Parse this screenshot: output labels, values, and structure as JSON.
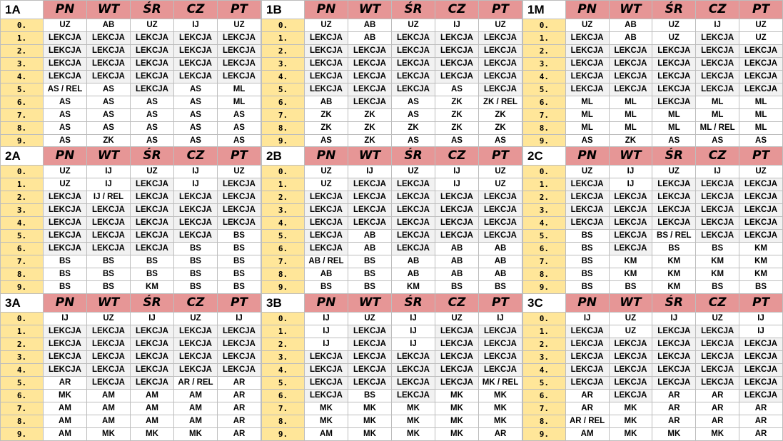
{
  "days": [
    "PN",
    "WT",
    "ŚR",
    "CZ",
    "PT"
  ],
  "lesson_numbers": [
    "0.",
    "1.",
    "2.",
    "3.",
    "4.",
    "5.",
    "6.",
    "7.",
    "8.",
    "9."
  ],
  "colors": {
    "day_header": "#e69696",
    "lesson_column": "#ffe699",
    "lekcja_cell": "#f2f2f2",
    "cell": "#ffffff"
  },
  "blocks": [
    {
      "name": "1A",
      "rows": [
        [
          "UZ",
          "AB",
          "UZ",
          "IJ",
          "UZ"
        ],
        [
          "LEKCJA",
          "LEKCJA",
          "LEKCJA",
          "LEKCJA",
          "LEKCJA"
        ],
        [
          "LEKCJA",
          "LEKCJA",
          "LEKCJA",
          "LEKCJA",
          "LEKCJA"
        ],
        [
          "LEKCJA",
          "LEKCJA",
          "LEKCJA",
          "LEKCJA",
          "LEKCJA"
        ],
        [
          "LEKCJA",
          "LEKCJA",
          "LEKCJA",
          "LEKCJA",
          "LEKCJA"
        ],
        [
          "AS / REL",
          "AS",
          "LEKCJA",
          "AS",
          "ML"
        ],
        [
          "AS",
          "AS",
          "AS",
          "AS",
          "ML"
        ],
        [
          "AS",
          "AS",
          "AS",
          "AS",
          "AS"
        ],
        [
          "AS",
          "AS",
          "AS",
          "AS",
          "AS"
        ],
        [
          "AS",
          "ZK",
          "AS",
          "AS",
          "AS"
        ]
      ]
    },
    {
      "name": "1B",
      "rows": [
        [
          "UZ",
          "AB",
          "UZ",
          "IJ",
          "UZ"
        ],
        [
          "LEKCJA",
          "AB",
          "LEKCJA",
          "LEKCJA",
          "LEKCJA"
        ],
        [
          "LEKCJA",
          "LEKCJA",
          "LEKCJA",
          "LEKCJA",
          "LEKCJA"
        ],
        [
          "LEKCJA",
          "LEKCJA",
          "LEKCJA",
          "LEKCJA",
          "LEKCJA"
        ],
        [
          "LEKCJA",
          "LEKCJA",
          "LEKCJA",
          "LEKCJA",
          "LEKCJA"
        ],
        [
          "LEKCJA",
          "LEKCJA",
          "LEKCJA",
          "AS",
          "LEKCJA"
        ],
        [
          "AB",
          "LEKCJA",
          "AS",
          "ZK",
          "ZK / REL"
        ],
        [
          "ZK",
          "ZK",
          "AS",
          "ZK",
          "ZK"
        ],
        [
          "ZK",
          "ZK",
          "ZK",
          "ZK",
          "ZK"
        ],
        [
          "AS",
          "ZK",
          "AS",
          "AS",
          "AS"
        ]
      ]
    },
    {
      "name": "1M",
      "rows": [
        [
          "UZ",
          "AB",
          "UZ",
          "IJ",
          "UZ"
        ],
        [
          "LEKCJA",
          "AB",
          "UZ",
          "LEKCJA",
          "UZ"
        ],
        [
          "LEKCJA",
          "LEKCJA",
          "LEKCJA",
          "LEKCJA",
          "LEKCJA"
        ],
        [
          "LEKCJA",
          "LEKCJA",
          "LEKCJA",
          "LEKCJA",
          "LEKCJA"
        ],
        [
          "LEKCJA",
          "LEKCJA",
          "LEKCJA",
          "LEKCJA",
          "LEKCJA"
        ],
        [
          "LEKCJA",
          "LEKCJA",
          "LEKCJA",
          "LEKCJA",
          "LEKCJA"
        ],
        [
          "ML",
          "ML",
          "LEKCJA",
          "ML",
          "ML"
        ],
        [
          "ML",
          "ML",
          "ML",
          "ML",
          "ML"
        ],
        [
          "ML",
          "ML",
          "ML",
          "ML / REL",
          "ML"
        ],
        [
          "AS",
          "ZK",
          "AS",
          "AS",
          "AS"
        ]
      ]
    },
    {
      "name": "2A",
      "rows": [
        [
          "UZ",
          "IJ",
          "UZ",
          "IJ",
          "UZ"
        ],
        [
          "UZ",
          "IJ",
          "LEKCJA",
          "IJ",
          "LEKCJA"
        ],
        [
          "LEKCJA",
          "IJ / REL",
          "LEKCJA",
          "LEKCJA",
          "LEKCJA"
        ],
        [
          "LEKCJA",
          "LEKCJA",
          "LEKCJA",
          "LEKCJA",
          "LEKCJA"
        ],
        [
          "LEKCJA",
          "LEKCJA",
          "LEKCJA",
          "LEKCJA",
          "LEKCJA"
        ],
        [
          "LEKCJA",
          "LEKCJA",
          "LEKCJA",
          "LEKCJA",
          "BS"
        ],
        [
          "LEKCJA",
          "LEKCJA",
          "LEKCJA",
          "BS",
          "BS"
        ],
        [
          "BS",
          "BS",
          "BS",
          "BS",
          "BS"
        ],
        [
          "BS",
          "BS",
          "BS",
          "BS",
          "BS"
        ],
        [
          "BS",
          "BS",
          "KM",
          "BS",
          "BS"
        ]
      ]
    },
    {
      "name": "2B",
      "rows": [
        [
          "UZ",
          "IJ",
          "UZ",
          "IJ",
          "UZ"
        ],
        [
          "UZ",
          "LEKCJA",
          "LEKCJA",
          "IJ",
          "UZ"
        ],
        [
          "LEKCJA",
          "LEKCJA",
          "LEKCJA",
          "LEKCJA",
          "LEKCJA"
        ],
        [
          "LEKCJA",
          "LEKCJA",
          "LEKCJA",
          "LEKCJA",
          "LEKCJA"
        ],
        [
          "LEKCJA",
          "LEKCJA",
          "LEKCJA",
          "LEKCJA",
          "LEKCJA"
        ],
        [
          "LEKCJA",
          "AB",
          "LEKCJA",
          "LEKCJA",
          "LEKCJA"
        ],
        [
          "LEKCJA",
          "AB",
          "LEKCJA",
          "AB",
          "AB"
        ],
        [
          "AB / REL",
          "BS",
          "AB",
          "AB",
          "AB"
        ],
        [
          "AB",
          "BS",
          "AB",
          "AB",
          "AB"
        ],
        [
          "BS",
          "BS",
          "KM",
          "BS",
          "BS"
        ]
      ]
    },
    {
      "name": "2C",
      "rows": [
        [
          "UZ",
          "IJ",
          "UZ",
          "IJ",
          "UZ"
        ],
        [
          "LEKCJA",
          "IJ",
          "LEKCJA",
          "LEKCJA",
          "LEKCJA"
        ],
        [
          "LEKCJA",
          "LEKCJA",
          "LEKCJA",
          "LEKCJA",
          "LEKCJA"
        ],
        [
          "LEKCJA",
          "LEKCJA",
          "LEKCJA",
          "LEKCJA",
          "LEKCJA"
        ],
        [
          "LEKCJA",
          "LEKCJA",
          "LEKCJA",
          "LEKCJA",
          "LEKCJA"
        ],
        [
          "BS",
          "LEKCJA",
          "BS / REL",
          "LEKCJA",
          "LEKCJA"
        ],
        [
          "BS",
          "LEKCJA",
          "BS",
          "BS",
          "KM"
        ],
        [
          "BS",
          "KM",
          "KM",
          "KM",
          "KM"
        ],
        [
          "BS",
          "KM",
          "KM",
          "KM",
          "KM"
        ],
        [
          "BS",
          "BS",
          "KM",
          "BS",
          "BS"
        ]
      ]
    },
    {
      "name": "3A",
      "rows": [
        [
          "IJ",
          "UZ",
          "IJ",
          "UZ",
          "IJ"
        ],
        [
          "LEKCJA",
          "LEKCJA",
          "LEKCJA",
          "LEKCJA",
          "LEKCJA"
        ],
        [
          "LEKCJA",
          "LEKCJA",
          "LEKCJA",
          "LEKCJA",
          "LEKCJA"
        ],
        [
          "LEKCJA",
          "LEKCJA",
          "LEKCJA",
          "LEKCJA",
          "LEKCJA"
        ],
        [
          "LEKCJA",
          "LEKCJA",
          "LEKCJA",
          "LEKCJA",
          "LEKCJA"
        ],
        [
          "AR",
          "LEKCJA",
          "LEKCJA",
          "AR / REL",
          "AR"
        ],
        [
          "MK",
          "AM",
          "AM",
          "AM",
          "AR"
        ],
        [
          "AM",
          "AM",
          "AM",
          "AM",
          "AR"
        ],
        [
          "AM",
          "AM",
          "AM",
          "AM",
          "AR"
        ],
        [
          "AM",
          "MK",
          "MK",
          "MK",
          "AR"
        ]
      ]
    },
    {
      "name": "3B",
      "rows": [
        [
          "IJ",
          "UZ",
          "IJ",
          "UZ",
          "IJ"
        ],
        [
          "IJ",
          "LEKCJA",
          "IJ",
          "LEKCJA",
          "LEKCJA"
        ],
        [
          "IJ",
          "LEKCJA",
          "IJ",
          "LEKCJA",
          "LEKCJA"
        ],
        [
          "LEKCJA",
          "LEKCJA",
          "LEKCJA",
          "LEKCJA",
          "LEKCJA"
        ],
        [
          "LEKCJA",
          "LEKCJA",
          "LEKCJA",
          "LEKCJA",
          "LEKCJA"
        ],
        [
          "LEKCJA",
          "LEKCJA",
          "LEKCJA",
          "LEKCJA",
          "MK / REL"
        ],
        [
          "LEKCJA",
          "BS",
          "LEKCJA",
          "MK",
          "MK"
        ],
        [
          "MK",
          "MK",
          "MK",
          "MK",
          "MK"
        ],
        [
          "MK",
          "MK",
          "MK",
          "MK",
          "MK"
        ],
        [
          "AM",
          "MK",
          "MK",
          "MK",
          "AR"
        ]
      ]
    },
    {
      "name": "3C",
      "rows": [
        [
          "IJ",
          "UZ",
          "IJ",
          "UZ",
          "IJ"
        ],
        [
          "LEKCJA",
          "UZ",
          "LEKCJA",
          "LEKCJA",
          "IJ"
        ],
        [
          "LEKCJA",
          "LEKCJA",
          "LEKCJA",
          "LEKCJA",
          "LEKCJA"
        ],
        [
          "LEKCJA",
          "LEKCJA",
          "LEKCJA",
          "LEKCJA",
          "LEKCJA"
        ],
        [
          "LEKCJA",
          "LEKCJA",
          "LEKCJA",
          "LEKCJA",
          "LEKCJA"
        ],
        [
          "LEKCJA",
          "LEKCJA",
          "LEKCJA",
          "LEKCJA",
          "LEKCJA"
        ],
        [
          "AR",
          "LEKCJA",
          "AR",
          "AR",
          "LEKCJA"
        ],
        [
          "AR",
          "MK",
          "AR",
          "AR",
          "AR"
        ],
        [
          "AR / REL",
          "MK",
          "AR",
          "AR",
          "AR"
        ],
        [
          "AM",
          "MK",
          "MK",
          "MK",
          "AR"
        ]
      ]
    }
  ]
}
